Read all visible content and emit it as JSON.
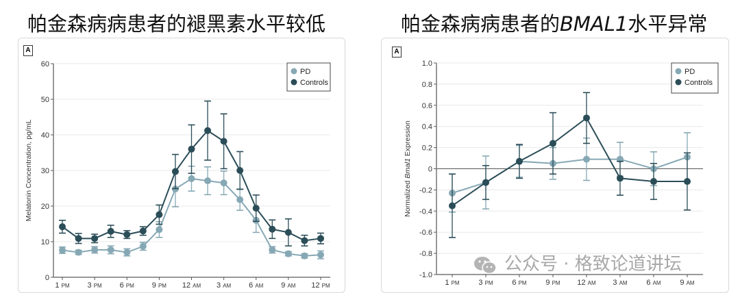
{
  "titles": {
    "left": "帕金森病病患者的褪黑素水平较低",
    "right_prefix": "帕金森病病患者的",
    "right_italic": "BMAL1",
    "right_suffix": "水平异常"
  },
  "watermark": "公众号 · 格致论道讲坛",
  "chart_data": [
    {
      "type": "line",
      "panel_label": "A",
      "ylabel": "Melatonin Concentration, pg/mL",
      "ylim": [
        0,
        60
      ],
      "yticks": [
        0,
        10,
        20,
        30,
        40,
        50,
        60
      ],
      "xtick_labels": [
        "1 PM",
        "3 PM",
        "6 PM",
        "9 PM",
        "12 AM",
        "3 AM",
        "6 AM",
        "9 AM",
        "12 PM"
      ],
      "grid": true,
      "legend": "top-right",
      "series": [
        {
          "name": "PD",
          "color": "#86a8b4",
          "values": [
            7.6,
            7.0,
            7.7,
            7.7,
            7.0,
            8.7,
            13.4,
            24.8,
            27.7,
            27.1,
            26.5,
            21.8,
            16.0,
            7.7,
            6.6,
            6.0,
            6.3
          ],
          "error": [
            0.9,
            0.6,
            0.9,
            1.1,
            1.0,
            1.1,
            2.2,
            5.0,
            3.5,
            3.9,
            3.3,
            3.0,
            3.4,
            0.9,
            0.6,
            0.6,
            1.1
          ]
        },
        {
          "name": "Controls",
          "color": "#2b4d58",
          "values": [
            14.2,
            10.9,
            10.9,
            12.9,
            12.0,
            13.0,
            17.6,
            29.7,
            36.0,
            41.2,
            38.2,
            30.0,
            19.4,
            13.5,
            12.6,
            10.3,
            10.9
          ],
          "error": [
            1.8,
            1.4,
            1.2,
            1.7,
            1.1,
            1.2,
            2.7,
            4.8,
            6.8,
            8.3,
            7.7,
            5.3,
            3.7,
            2.6,
            3.8,
            1.5,
            1.5
          ]
        }
      ]
    },
    {
      "type": "line",
      "panel_label": "A",
      "ylabel_prefix": "Normalized ",
      "ylabel_italic": "Bmal1",
      "ylabel_suffix": " Expression",
      "ylim": [
        -1.0,
        1.0
      ],
      "yticks": [
        -1.0,
        -0.8,
        -0.6,
        -0.4,
        -0.2,
        0,
        0.2,
        0.4,
        0.6,
        0.8,
        1.0
      ],
      "xtick_labels": [
        "1 PM",
        "3 PM",
        "6 PM",
        "9 PM",
        "12 AM",
        "3 AM",
        "6 AM",
        "9 AM"
      ],
      "grid": true,
      "zero_line": true,
      "legend": "top-right",
      "series": [
        {
          "name": "PD",
          "color": "#86a8b4",
          "values": [
            -0.23,
            -0.13,
            0.07,
            0.05,
            0.09,
            0.09,
            0.0,
            0.11
          ],
          "error": [
            0.18,
            0.25,
            0.15,
            0.15,
            0.2,
            0.16,
            0.16,
            0.23
          ]
        },
        {
          "name": "Controls",
          "color": "#2b4d58",
          "values": [
            -0.35,
            -0.13,
            0.07,
            0.24,
            0.48,
            -0.09,
            -0.12,
            -0.12
          ],
          "error": [
            0.3,
            0.16,
            0.16,
            0.29,
            0.24,
            0.16,
            0.17,
            0.27
          ]
        }
      ]
    }
  ]
}
